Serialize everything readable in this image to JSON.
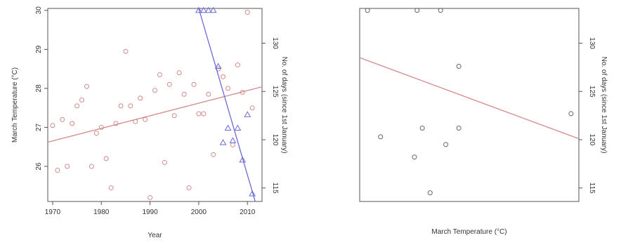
{
  "chart_data": [
    {
      "type": "scatter",
      "xlabel": "Year",
      "ylabel_left": "March Temperature (°C)",
      "ylabel_right": "No. of days (since 1st January)",
      "xlim": [
        1969,
        2013
      ],
      "ylim_left": [
        25.1,
        30.05
      ],
      "ylim_right": [
        113.6,
        133.6
      ],
      "x_ticks": [
        1970,
        1980,
        1990,
        2000,
        2010
      ],
      "y_ticks_left": [
        26,
        27,
        28,
        29,
        30
      ],
      "y_ticks_right": [
        115,
        120,
        125,
        130
      ],
      "colors": {
        "temperature": "#d48a8a",
        "days": "#6a6ad8",
        "frame": "#555555"
      },
      "series": [
        {
          "axis": "left",
          "marker": "circle",
          "points": [
            {
              "x": 1970,
              "y": 27.05
            },
            {
              "x": 1971,
              "y": 25.9
            },
            {
              "x": 1972,
              "y": 27.2
            },
            {
              "x": 1973,
              "y": 26.0
            },
            {
              "x": 1974,
              "y": 27.1
            },
            {
              "x": 1975,
              "y": 27.55
            },
            {
              "x": 1976,
              "y": 27.7
            },
            {
              "x": 1977,
              "y": 28.05
            },
            {
              "x": 1978,
              "y": 26.0
            },
            {
              "x": 1979,
              "y": 26.85
            },
            {
              "x": 1980,
              "y": 27.0
            },
            {
              "x": 1981,
              "y": 26.2
            },
            {
              "x": 1982,
              "y": 25.45
            },
            {
              "x": 1983,
              "y": 27.1
            },
            {
              "x": 1984,
              "y": 27.55
            },
            {
              "x": 1985,
              "y": 28.95
            },
            {
              "x": 1986,
              "y": 27.55
            },
            {
              "x": 1987,
              "y": 27.15
            },
            {
              "x": 1988,
              "y": 27.75
            },
            {
              "x": 1989,
              "y": 27.2
            },
            {
              "x": 1990,
              "y": 25.2
            },
            {
              "x": 1991,
              "y": 27.95
            },
            {
              "x": 1992,
              "y": 28.35
            },
            {
              "x": 1993,
              "y": 26.1
            },
            {
              "x": 1994,
              "y": 28.1
            },
            {
              "x": 1995,
              "y": 27.3
            },
            {
              "x": 1996,
              "y": 28.4
            },
            {
              "x": 1997,
              "y": 27.85
            },
            {
              "x": 1998,
              "y": 25.45
            },
            {
              "x": 1999,
              "y": 28.1
            },
            {
              "x": 2000,
              "y": 27.35
            },
            {
              "x": 2001,
              "y": 27.35
            },
            {
              "x": 2002,
              "y": 27.85
            },
            {
              "x": 2003,
              "y": 26.3
            },
            {
              "x": 2004,
              "y": 28.5
            },
            {
              "x": 2005,
              "y": 28.3
            },
            {
              "x": 2006,
              "y": 28.0
            },
            {
              "x": 2007,
              "y": 26.55
            },
            {
              "x": 2008,
              "y": 28.6
            },
            {
              "x": 2009,
              "y": 27.9
            },
            {
              "x": 2010,
              "y": 29.95
            },
            {
              "x": 2011,
              "y": 27.5
            }
          ],
          "trend": [
            {
              "x": 1969,
              "y": 26.62
            },
            {
              "x": 2013,
              "y": 28.04
            }
          ]
        },
        {
          "axis": "right",
          "marker": "triangle",
          "points": [
            {
              "x": 2000,
              "y": 133.4
            },
            {
              "x": 2001,
              "y": 133.4
            },
            {
              "x": 2002,
              "y": 133.4
            },
            {
              "x": 2003,
              "y": 133.4
            },
            {
              "x": 2004,
              "y": 127.6
            },
            {
              "x": 2005,
              "y": 119.7
            },
            {
              "x": 2006,
              "y": 121.2
            },
            {
              "x": 2007,
              "y": 119.9
            },
            {
              "x": 2008,
              "y": 121.2
            },
            {
              "x": 2009,
              "y": 117.9
            },
            {
              "x": 2010,
              "y": 122.6
            },
            {
              "x": 2011,
              "y": 114.4
            }
          ],
          "trend": [
            {
              "x": 2000,
              "y": 133.6
            },
            {
              "x": 2011.6,
              "y": 113.6
            }
          ]
        }
      ]
    },
    {
      "type": "scatter",
      "xlabel": "March Temperature (°C)",
      "ylabel_right": "No. of days (since 1st January)",
      "xlim": [
        25.9,
        30.1
      ],
      "ylim": [
        113.6,
        133.6
      ],
      "y_ticks": [
        115,
        120,
        125,
        130
      ],
      "colors": {
        "trend": "#d48a8a",
        "points": "#666666",
        "frame": "#555555"
      },
      "series": [
        {
          "points": [
            {
              "x": 26.05,
              "y": 133.4
            },
            {
              "x": 27.0,
              "y": 133.4
            },
            {
              "x": 27.45,
              "y": 133.4
            },
            {
              "x": 27.8,
              "y": 127.6
            },
            {
              "x": 26.3,
              "y": 120.3
            },
            {
              "x": 27.1,
              "y": 121.2
            },
            {
              "x": 27.8,
              "y": 121.2
            },
            {
              "x": 26.95,
              "y": 118.2
            },
            {
              "x": 27.55,
              "y": 119.5
            },
            {
              "x": 27.25,
              "y": 114.5
            },
            {
              "x": 29.95,
              "y": 122.7
            }
          ],
          "trend": [
            {
              "x": 25.9,
              "y": 128.5
            },
            {
              "x": 30.1,
              "y": 120.1
            }
          ]
        }
      ]
    }
  ]
}
